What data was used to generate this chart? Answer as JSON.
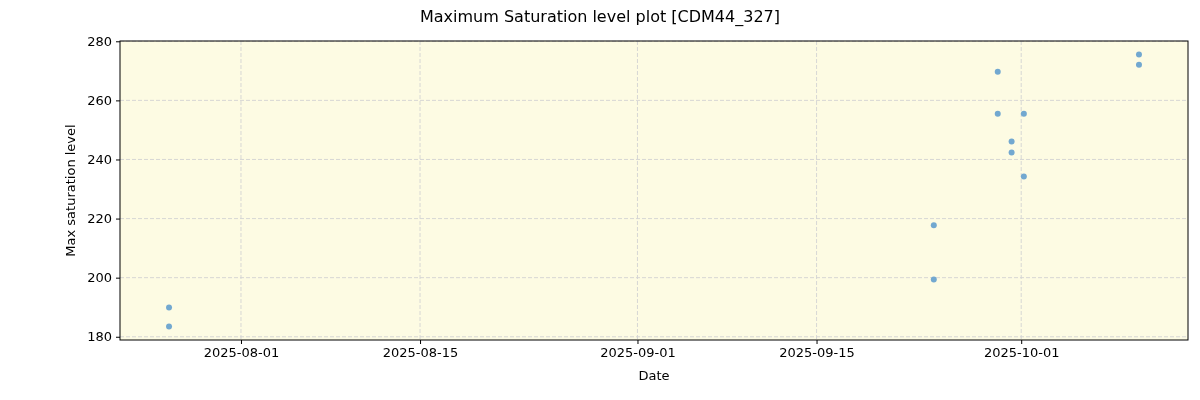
{
  "chart_data": {
    "type": "scatter",
    "title": "Maximum Saturation level plot [CDM44_327]",
    "xlabel": "Date",
    "ylabel": "Max saturation level",
    "series": [
      {
        "color": "#72a8d0",
        "x": [
          "2025-07-26T09:00",
          "2025-07-26T09:00",
          "2025-09-24T04:00",
          "2025-09-24T04:00",
          "2025-09-29T04:00",
          "2025-09-29T04:00",
          "2025-09-30T06:00",
          "2025-09-30T06:00",
          "2025-10-01T05:00",
          "2025-10-01T05:00",
          "2025-10-10T05:00",
          "2025-10-10T05:00"
        ],
        "values": [
          189.9,
          183.5,
          217.7,
          199.4,
          269.7,
          255.5,
          246.1,
          242.4,
          255.5,
          234.2,
          275.5,
          272.1
        ]
      }
    ],
    "xlim": [
      "2025-07-22T13:00",
      "2025-10-14T01:00"
    ],
    "xticks": [
      "2025-08-01",
      "2025-08-15",
      "2025-09-01",
      "2025-09-15",
      "2025-10-01"
    ],
    "ylim": [
      178.9,
      280.1
    ],
    "yticks": [
      180,
      200,
      220,
      240,
      260,
      280
    ],
    "grid": true,
    "marker": "circle"
  }
}
